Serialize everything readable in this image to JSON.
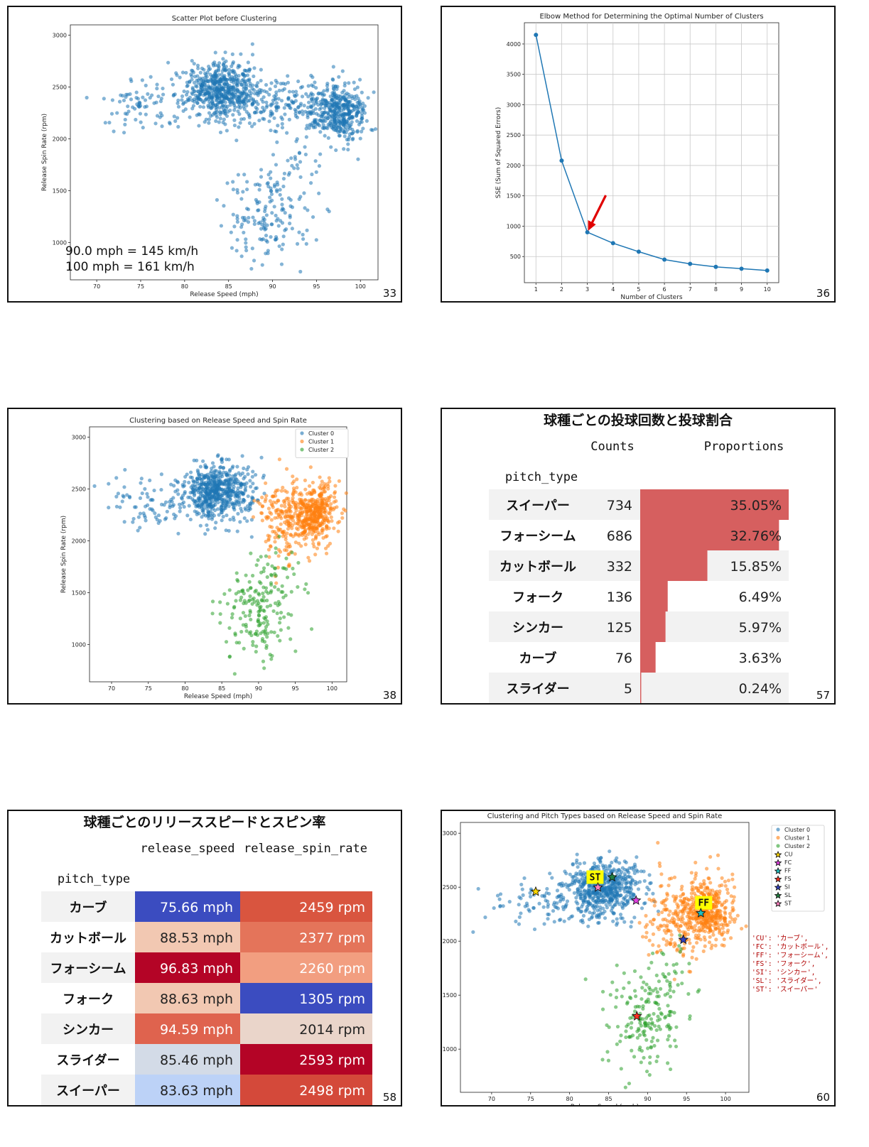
{
  "slides": [
    {
      "id": "s33",
      "page": "33"
    },
    {
      "id": "s36",
      "page": "36"
    },
    {
      "id": "s38",
      "page": "38"
    },
    {
      "id": "s57",
      "page": "57"
    },
    {
      "id": "s58",
      "page": "58"
    },
    {
      "id": "s60",
      "page": "60"
    }
  ],
  "conversion_note": [
    "90.0 mph = 145 km/h",
    "100 mph = 161 km/h"
  ],
  "colors": {
    "blue": "#1f77b4",
    "orange": "#ff7f0e",
    "green": "#2ca02c",
    "bar": "#d65f5f"
  },
  "chart_data": [
    {
      "type": "scatter",
      "title": "Scatter Plot before Clustering",
      "xlabel": "Release Speed (mph)",
      "ylabel": "Release Spin Rate (rpm)",
      "xlim": [
        67,
        102
      ],
      "ylim": [
        640,
        3100
      ],
      "xticks": [
        70,
        75,
        80,
        85,
        90,
        95,
        100
      ],
      "yticks": [
        1000,
        1500,
        2000,
        2500,
        3000
      ],
      "groups": [
        {
          "name": "all",
          "color": "#1f77b4",
          "clusters": [
            {
              "cx": 84,
              "cy": 2480,
              "sx": 2.0,
              "sy": 130,
              "n": 520
            },
            {
              "cx": 97.5,
              "cy": 2270,
              "sx": 1.6,
              "sy": 130,
              "n": 420
            },
            {
              "cx": 90,
              "cy": 2350,
              "sx": 3,
              "sy": 150,
              "n": 200
            },
            {
              "cx": 76,
              "cy": 2350,
              "sx": 3.5,
              "sy": 130,
              "n": 90
            },
            {
              "cx": 89.5,
              "cy": 1260,
              "sx": 2.2,
              "sy": 230,
              "n": 150
            },
            {
              "cx": 93,
              "cy": 1650,
              "sx": 2,
              "sy": 200,
              "n": 40
            }
          ]
        }
      ]
    },
    {
      "type": "line",
      "title": "Elbow Method for Determining the Optimal Number of Clusters",
      "xlabel": "Number of Clusters",
      "ylabel": "SSE (Sum of Squared Errors)",
      "x": [
        1,
        2,
        3,
        4,
        5,
        6,
        7,
        8,
        9,
        10
      ],
      "y": [
        4150,
        2080,
        900,
        720,
        580,
        450,
        380,
        330,
        300,
        270
      ],
      "xlim": [
        0.55,
        10.45
      ],
      "ylim": [
        70,
        4350
      ],
      "xticks": [
        1,
        2,
        3,
        4,
        5,
        6,
        7,
        8,
        9,
        10
      ],
      "yticks": [
        500,
        1000,
        1500,
        2000,
        2500,
        3000,
        3500,
        4000
      ],
      "annotation": {
        "type": "arrow",
        "points_to": {
          "x": 3,
          "y": 900
        },
        "color": "red"
      }
    },
    {
      "type": "scatter",
      "title": "Clustering based on Release Speed and Spin Rate",
      "xlabel": "Release Speed (mph)",
      "ylabel": "Release Spin Rate (rpm)",
      "xlim": [
        67,
        102
      ],
      "ylim": [
        640,
        3100
      ],
      "xticks": [
        70,
        75,
        80,
        85,
        90,
        95,
        100
      ],
      "yticks": [
        1000,
        1500,
        2000,
        2500,
        3000
      ],
      "legend": [
        "Cluster 0",
        "Cluster 1",
        "Cluster 2"
      ],
      "groups": [
        {
          "name": "Cluster 0",
          "color": "#1f77b4",
          "clusters": [
            {
              "cx": 84,
              "cy": 2480,
              "sx": 2.0,
              "sy": 130,
              "n": 520
            },
            {
              "cx": 76,
              "cy": 2350,
              "sx": 3.5,
              "sy": 130,
              "n": 90
            },
            {
              "cx": 88,
              "cy": 2450,
              "sx": 1.2,
              "sy": 150,
              "n": 60
            }
          ]
        },
        {
          "name": "Cluster 1",
          "color": "#ff7f0e",
          "clusters": [
            {
              "cx": 97.5,
              "cy": 2270,
              "sx": 1.7,
              "sy": 140,
              "n": 430
            },
            {
              "cx": 93,
              "cy": 2200,
              "sx": 1.6,
              "sy": 220,
              "n": 150
            }
          ]
        },
        {
          "name": "Cluster 2",
          "color": "#2ca02c",
          "clusters": [
            {
              "cx": 89.5,
              "cy": 1260,
              "sx": 2.2,
              "sy": 230,
              "n": 150
            },
            {
              "cx": 92.5,
              "cy": 1600,
              "sx": 1.8,
              "sy": 180,
              "n": 50
            }
          ]
        }
      ]
    },
    {
      "type": "table",
      "title": "球種ごとの投球回数と投球割合",
      "index_name": "pitch_type",
      "columns": [
        "Counts",
        "Proportions"
      ],
      "rows": [
        {
          "label": "スイーパー",
          "count": "734",
          "prop": "35.05%",
          "value": 35.05
        },
        {
          "label": "フォーシーム",
          "count": "686",
          "prop": "32.76%",
          "value": 32.76
        },
        {
          "label": "カットボール",
          "count": "332",
          "prop": "15.85%",
          "value": 15.85
        },
        {
          "label": "フォーク",
          "count": "136",
          "prop": "6.49%",
          "value": 6.49
        },
        {
          "label": "シンカー",
          "count": "125",
          "prop": "5.97%",
          "value": 5.97
        },
        {
          "label": "カーブ",
          "count": "76",
          "prop": "3.63%",
          "value": 3.63
        },
        {
          "label": "スライダー",
          "count": "5",
          "prop": "0.24%",
          "value": 0.24
        }
      ]
    },
    {
      "type": "table",
      "title": "球種ごとのリリーススピードとスピン率",
      "index_name": "pitch_type",
      "columns": [
        "release_speed",
        "release_spin_rate"
      ],
      "rows": [
        {
          "label": "カーブ",
          "speed": "75.66 mph",
          "spin": "2459 rpm",
          "c1": "#3b4cc0",
          "c2": "#d9553f",
          "t1": "#fff",
          "t2": "#fff"
        },
        {
          "label": "カットボール",
          "speed": "88.53 mph",
          "spin": "2377 rpm",
          "c1": "#f2c8b2",
          "c2": "#e4745a",
          "t1": "#222",
          "t2": "#fff"
        },
        {
          "label": "フォーシーム",
          "speed": "96.83 mph",
          "spin": "2260 rpm",
          "c1": "#b40426",
          "c2": "#f29e80",
          "t1": "#fff",
          "t2": "#fff"
        },
        {
          "label": "フォーク",
          "speed": "88.63 mph",
          "spin": "1305 rpm",
          "c1": "#f2c8b2",
          "c2": "#3b4cc0",
          "t1": "#222",
          "t2": "#fff"
        },
        {
          "label": "シンカー",
          "speed": "94.59 mph",
          "spin": "2014 rpm",
          "c1": "#df634e",
          "c2": "#ead5ca",
          "t1": "#fff",
          "t2": "#222"
        },
        {
          "label": "スライダー",
          "speed": "85.46 mph",
          "spin": "2593 rpm",
          "c1": "#d3dbe7",
          "c2": "#b40426",
          "t1": "#222",
          "t2": "#fff"
        },
        {
          "label": "スイーパー",
          "speed": "83.63 mph",
          "spin": "2498 rpm",
          "c1": "#bcd2f7",
          "c2": "#d4493a",
          "t1": "#222",
          "t2": "#fff"
        }
      ]
    },
    {
      "type": "scatter",
      "title": "Clustering and Pitch Types based on Release Speed and Spin Rate",
      "xlabel": "Release Speed (mph)",
      "ylabel": "Release Spin Rate (rpm)",
      "xlim": [
        66,
        103
      ],
      "ylim": [
        600,
        3100
      ],
      "xticks": [
        70,
        75,
        80,
        85,
        90,
        95,
        100
      ],
      "yticks": [
        1000,
        1500,
        2000,
        2500,
        3000
      ],
      "legend": [
        "Cluster 0",
        "Cluster 1",
        "Cluster 2",
        "CU",
        "FC",
        "FF",
        "FS",
        "SI",
        "SL",
        "ST"
      ],
      "groups": [
        {
          "name": "Cluster 0",
          "color": "#1f77b4",
          "clusters": [
            {
              "cx": 84,
              "cy": 2480,
              "sx": 2.0,
              "sy": 130,
              "n": 520
            },
            {
              "cx": 76,
              "cy": 2350,
              "sx": 3.5,
              "sy": 130,
              "n": 90
            },
            {
              "cx": 88,
              "cy": 2450,
              "sx": 1.2,
              "sy": 150,
              "n": 60
            }
          ]
        },
        {
          "name": "Cluster 1",
          "color": "#ff7f0e",
          "clusters": [
            {
              "cx": 97.5,
              "cy": 2270,
              "sx": 1.7,
              "sy": 140,
              "n": 430
            },
            {
              "cx": 93,
              "cy": 2200,
              "sx": 1.6,
              "sy": 220,
              "n": 150
            }
          ]
        },
        {
          "name": "Cluster 2",
          "color": "#2ca02c",
          "clusters": [
            {
              "cx": 89.5,
              "cy": 1260,
              "sx": 2.2,
              "sy": 230,
              "n": 150
            },
            {
              "cx": 92.5,
              "cy": 1600,
              "sx": 1.8,
              "sy": 180,
              "n": 50
            }
          ]
        }
      ],
      "centers": [
        {
          "code": "CU",
          "x": 75.66,
          "y": 2459,
          "color": "#ffd700"
        },
        {
          "code": "FC",
          "x": 88.53,
          "y": 2377,
          "color": "#e040e0"
        },
        {
          "code": "FF",
          "x": 96.83,
          "y": 2260,
          "color": "#20c0c0"
        },
        {
          "code": "FS",
          "x": 88.63,
          "y": 1305,
          "color": "#ff3020"
        },
        {
          "code": "SI",
          "x": 94.59,
          "y": 2014,
          "color": "#3040c0"
        },
        {
          "code": "SL",
          "x": 85.46,
          "y": 2593,
          "color": "#208040"
        },
        {
          "code": "ST",
          "x": 83.63,
          "y": 2498,
          "color": "#ff80c0"
        }
      ],
      "labels_on_plot": [
        "ST",
        "FF"
      ],
      "mapping_lines": [
        "'CU': 'カーブ',",
        "'FC': 'カットボール',",
        "'FF': 'フォーシーム',",
        "'FS': 'フォーク',",
        "'SI': 'シンカー',",
        "'SL': 'スライダー',",
        "'ST': 'スイーパー'"
      ]
    }
  ]
}
